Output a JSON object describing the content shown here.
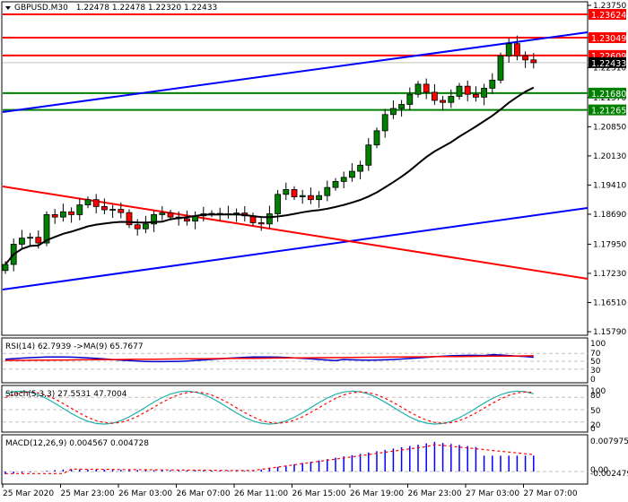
{
  "header": {
    "symbol": "GBPUSD.M30",
    "ohlc": "1.22478 1.22478 1.22320 1.22433"
  },
  "price_axis": {
    "ticks": [
      "1.23750",
      "1.23049",
      "1.22310",
      "1.21570",
      "1.20850",
      "1.20130",
      "1.19410",
      "1.18690",
      "1.17950",
      "1.17230",
      "1.16510",
      "1.15790"
    ],
    "tags": [
      {
        "value": "1.23624",
        "color": "#ff0000"
      },
      {
        "value": "1.23049",
        "color": "#ff0000"
      },
      {
        "value": "1.22609",
        "color": "#ff0000"
      },
      {
        "value": "1.22433",
        "color": "#000000"
      },
      {
        "value": "1.21680",
        "color": "#008000"
      },
      {
        "value": "1.21265",
        "color": "#008000"
      }
    ]
  },
  "indicators": {
    "rsi": {
      "label": "RSI(14) 62.7939  ->MA(9) 65.7677",
      "levels": [
        "100",
        "70",
        "50",
        "30",
        "0"
      ]
    },
    "stoch": {
      "label": "Stoch(5,3,3) 27.5531 47.7004",
      "levels": [
        "100",
        "80",
        "50",
        "20",
        "0"
      ]
    },
    "macd": {
      "label": "MACD(12,26,9) 0.004567 0.004728",
      "levels": [
        "0.007975",
        "0.00",
        "-0.002479"
      ]
    }
  },
  "time_axis": [
    "25 Mar 2020",
    "25 Mar 23:00",
    "26 Mar 03:00",
    "26 Mar 07:00",
    "26 Mar 11:00",
    "26 Mar 15:00",
    "26 Mar 19:00",
    "26 Mar 23:00",
    "27 Mar 03:00",
    "27 Mar 07:00"
  ],
  "colors": {
    "bull": "#008000",
    "bear": "#ff0000",
    "resistance": "#ff0000",
    "support": "#008000",
    "channel": "#0000ff",
    "ma": "#000000",
    "rsi": "#0000cc",
    "stoch_main": "#20b2aa",
    "signal": "#ff0000",
    "macd_hist": "#0000ff"
  },
  "chart_data": {
    "type": "candlestick",
    "title": "GBPUSD.M30",
    "ylim": [
      1.1579,
      1.2375
    ],
    "horizontal_levels": {
      "resistance": [
        1.23624,
        1.23049,
        1.22609
      ],
      "support": [
        1.2168,
        1.21265
      ],
      "last_price": 1.22433
    },
    "candles_close_approx": [
      1.1745,
      1.1795,
      1.181,
      1.1812,
      1.1798,
      1.1868,
      1.1862,
      1.1875,
      1.1868,
      1.1892,
      1.1905,
      1.1888,
      1.188,
      1.1881,
      1.1873,
      1.1843,
      1.1833,
      1.1845,
      1.1868,
      1.1872,
      1.1862,
      1.1858,
      1.1852,
      1.1865,
      1.187,
      1.1871,
      1.1869,
      1.187,
      1.1872,
      1.1865,
      1.1848,
      1.1845,
      1.187,
      1.1918,
      1.193,
      1.1912,
      1.1915,
      1.1905,
      1.1915,
      1.1935,
      1.195,
      1.196,
      1.1975,
      1.199,
      1.204,
      1.2075,
      1.2115,
      1.213,
      1.214,
      1.2165,
      1.219,
      1.217,
      1.215,
      1.2145,
      1.216,
      1.2185,
      1.2165,
      1.2158,
      1.218,
      1.22,
      1.226,
      1.229,
      1.226,
      1.225,
      1.2243
    ],
    "ma_label": "MA (black)",
    "rsi": {
      "value": 62.7939,
      "ma": 65.7677
    },
    "stoch": {
      "k": 27.5531,
      "d": 47.7004
    },
    "macd": {
      "main": 0.004567,
      "signal": 0.004728,
      "ylim": [
        -0.002479,
        0.007975
      ]
    }
  }
}
